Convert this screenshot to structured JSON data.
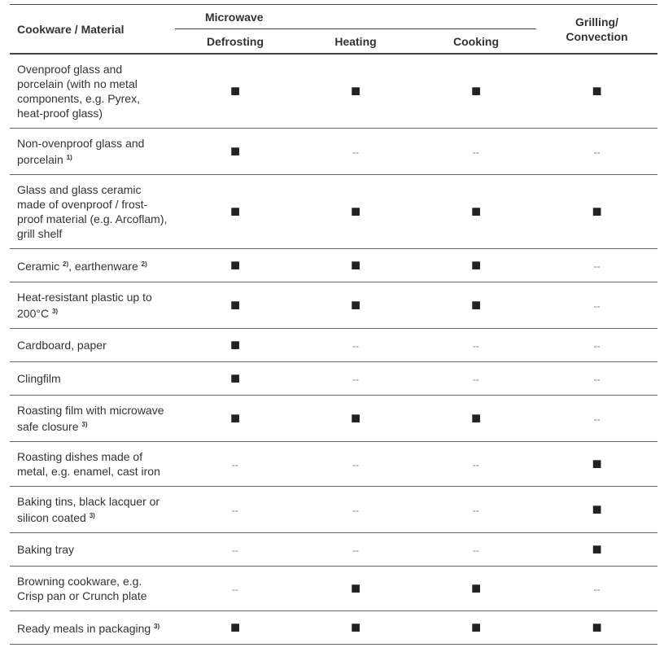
{
  "header": {
    "material": "Cookware / Material",
    "microwave": "Microwave",
    "columns": [
      "Defrosting",
      "Heating",
      "Cooking"
    ],
    "grilling": [
      "Grilling/",
      "Convection"
    ]
  },
  "rows": [
    {
      "label": [
        {
          "text": "Ovenproof glass and porcelain (with no metal components, e.g. Pyrex, heat-proof glass)"
        }
      ],
      "cells": [
        "■",
        "■",
        "■",
        "■"
      ]
    },
    {
      "label": [
        {
          "text": "Non-ovenproof glass and porcelain "
        },
        {
          "sup": "1)"
        }
      ],
      "cells": [
        "■",
        "--",
        "--",
        "--"
      ]
    },
    {
      "label": [
        {
          "text": "Glass and glass ceramic made of ovenproof / frost-proof material (e.g. Arcoflam), grill shelf"
        }
      ],
      "cells": [
        "■",
        "■",
        "■",
        "■"
      ]
    },
    {
      "label": [
        {
          "text": "Ceramic "
        },
        {
          "sup": "2)"
        },
        {
          "text": ", earthenware "
        },
        {
          "sup": "2)"
        }
      ],
      "cells": [
        "■",
        "■",
        "■",
        "--"
      ]
    },
    {
      "label": [
        {
          "text": "Heat-resistant plastic up to 200°C "
        },
        {
          "sup": "3)"
        }
      ],
      "cells": [
        "■",
        "■",
        "■",
        "--"
      ]
    },
    {
      "label": [
        {
          "text": "Cardboard, paper"
        }
      ],
      "cells": [
        "■",
        "--",
        "--",
        "--"
      ]
    },
    {
      "label": [
        {
          "text": "Clingfilm"
        }
      ],
      "cells": [
        "■",
        "--",
        "--",
        "--"
      ]
    },
    {
      "label": [
        {
          "text": "Roasting film with microwave safe closure "
        },
        {
          "sup": "3)"
        }
      ],
      "cells": [
        "■",
        "■",
        "■",
        "--"
      ]
    },
    {
      "label": [
        {
          "text": "Roasting dishes made of metal, e.g. enamel, cast iron"
        }
      ],
      "cells": [
        "--",
        "--",
        "--",
        "■"
      ]
    },
    {
      "label": [
        {
          "text": "Baking tins, black lacquer or silicon coated "
        },
        {
          "sup": "3)"
        }
      ],
      "cells": [
        "--",
        "--",
        "--",
        "■"
      ]
    },
    {
      "label": [
        {
          "text": "Baking tray"
        }
      ],
      "cells": [
        "--",
        "--",
        "--",
        "■"
      ]
    },
    {
      "label": [
        {
          "text": "Browning cookware, e.g. Crisp pan or Crunch plate"
        }
      ],
      "cells": [
        "--",
        "■",
        "■",
        "--"
      ]
    },
    {
      "label": [
        {
          "text": "Ready meals in packaging "
        },
        {
          "sup": "3)"
        }
      ],
      "cells": [
        "■",
        "■",
        "■",
        "■"
      ]
    }
  ]
}
